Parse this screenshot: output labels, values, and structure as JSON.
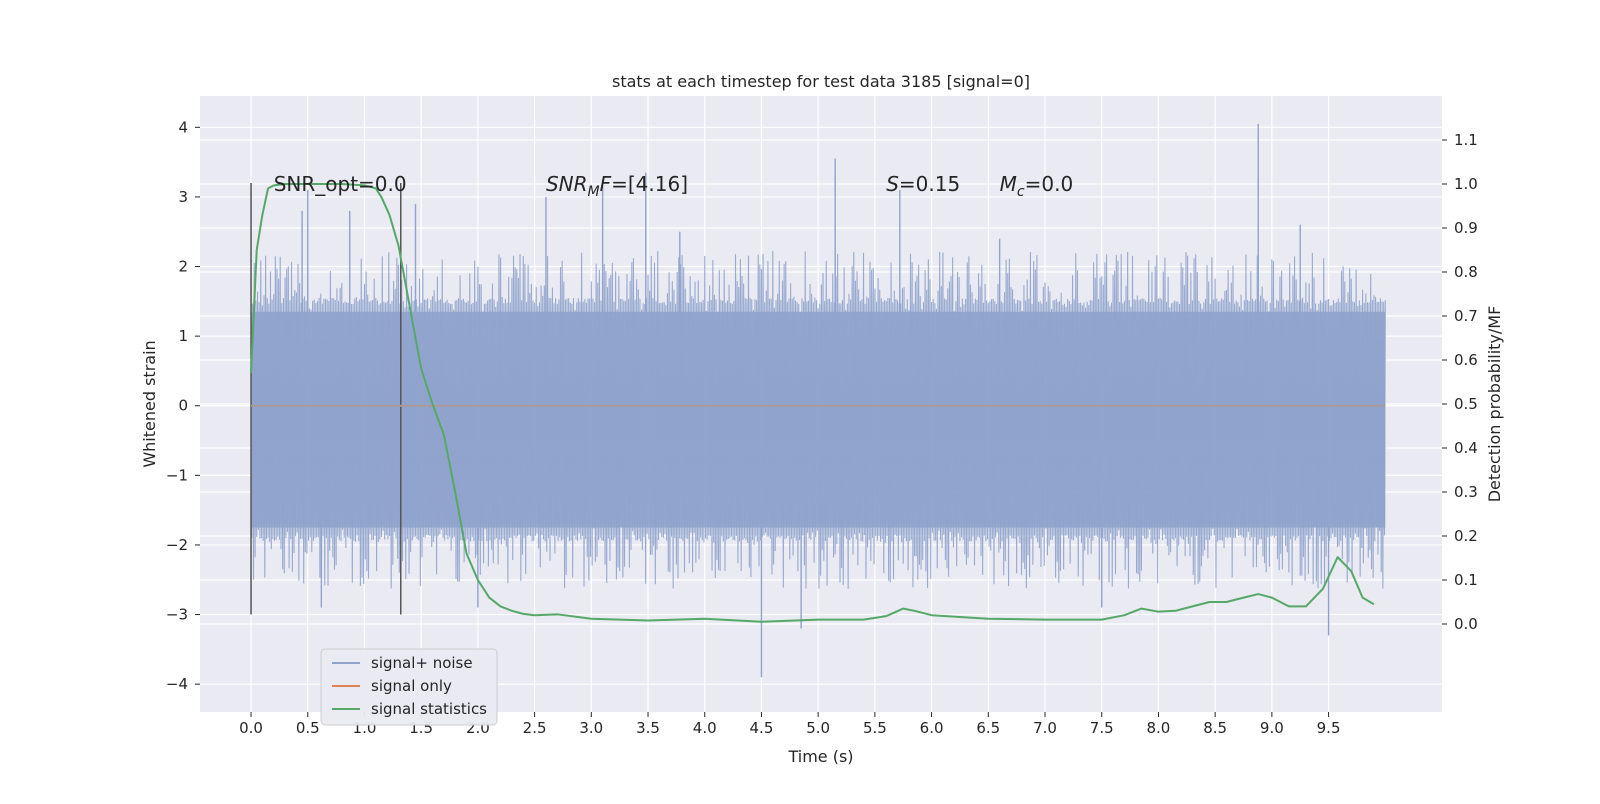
{
  "chart_data": {
    "type": "line",
    "title": "stats at each timestep for test data 3185 [signal=0]",
    "xlabel": "Time (s)",
    "ylabel_left": "Whitened strain",
    "ylabel_right": "Detection probability/MF",
    "xlim": [
      -0.45,
      10.5
    ],
    "ylim_left": [
      -4.4,
      4.45
    ],
    "ylim_right": [
      -0.2,
      1.2
    ],
    "x_ticks": [
      0.0,
      0.5,
      1.0,
      1.5,
      2.0,
      2.5,
      3.0,
      3.5,
      4.0,
      4.5,
      5.0,
      5.5,
      6.0,
      6.5,
      7.0,
      7.5,
      8.0,
      8.5,
      9.0,
      9.5
    ],
    "x_tick_labels": [
      "0.0",
      "0.5",
      "1.0",
      "1.5",
      "2.0",
      "2.5",
      "3.0",
      "3.5",
      "4.0",
      "4.5",
      "5.0",
      "5.5",
      "6.0",
      "6.5",
      "7.0",
      "7.5",
      "8.0",
      "8.5",
      "9.0",
      "9.5"
    ],
    "y_left_ticks": [
      4,
      3,
      2,
      1,
      0,
      -1,
      -2,
      -3,
      -4
    ],
    "y_left_tick_labels": [
      "4",
      "3",
      "2",
      "1",
      "0",
      "−1",
      "−2",
      "−3",
      "−4"
    ],
    "y_right_ticks": [
      1.1,
      1.0,
      0.9,
      0.8,
      0.7,
      0.6,
      0.5,
      0.4,
      0.3,
      0.2,
      0.1,
      0.0
    ],
    "y_right_tick_labels": [
      "1.1",
      "1.0",
      "0.9",
      "0.8",
      "0.7",
      "0.6",
      "0.5",
      "0.4",
      "0.3",
      "0.2",
      "0.1",
      "0.0"
    ],
    "grid": true,
    "legend_position": "lower-left",
    "colors": {
      "background": "#eaeaf2",
      "grid": "#ffffff",
      "noise": "#8fa3cc",
      "signal_only": "#dd8452",
      "statistics": "#55a868",
      "marker_lines": "#555555"
    },
    "noise_trace": {
      "x_start": 0.0,
      "x_end": 10.0,
      "band_upper": 1.35,
      "band_lower": -1.75,
      "spike_peaks": [
        {
          "x": 0.45,
          "y": 2.8
        },
        {
          "x": 0.5,
          "y": 3.1
        },
        {
          "x": 0.62,
          "y": -2.9
        },
        {
          "x": 0.87,
          "y": 2.8
        },
        {
          "x": 1.45,
          "y": 2.9
        },
        {
          "x": 2.6,
          "y": 3.0
        },
        {
          "x": 3.1,
          "y": 3.25
        },
        {
          "x": 3.48,
          "y": 3.35
        },
        {
          "x": 3.78,
          "y": 2.5
        },
        {
          "x": 4.5,
          "y": -3.9
        },
        {
          "x": 4.85,
          "y": -3.2
        },
        {
          "x": 5.15,
          "y": 3.55
        },
        {
          "x": 5.72,
          "y": 3.1
        },
        {
          "x": 6.6,
          "y": 2.4
        },
        {
          "x": 8.88,
          "y": 4.05
        },
        {
          "x": 9.5,
          "y": -3.3
        },
        {
          "x": 9.25,
          "y": 2.6
        },
        {
          "x": 2.0,
          "y": -2.9
        },
        {
          "x": 7.5,
          "y": -2.9
        }
      ]
    },
    "series": [
      {
        "name": "signal+ noise",
        "axis": "left",
        "x": [
          0.0,
          10.0
        ],
        "values": [
          0.0,
          0.0
        ]
      },
      {
        "name": "signal only",
        "axis": "left",
        "x": [
          0.0,
          10.0
        ],
        "values": [
          0.0,
          0.0
        ]
      },
      {
        "name": "signal statistics",
        "axis": "right",
        "x": [
          0.0,
          0.05,
          0.1,
          0.15,
          0.2,
          0.3,
          0.5,
          0.8,
          1.0,
          1.1,
          1.15,
          1.22,
          1.3,
          1.35,
          1.4,
          1.5,
          1.6,
          1.7,
          1.8,
          1.9,
          2.0,
          2.1,
          2.2,
          2.3,
          2.4,
          2.5,
          2.7,
          3.0,
          3.5,
          4.0,
          4.5,
          5.0,
          5.4,
          5.6,
          5.75,
          5.85,
          6.0,
          6.5,
          7.0,
          7.5,
          7.7,
          7.85,
          8.0,
          8.15,
          8.3,
          8.45,
          8.6,
          8.75,
          8.88,
          9.0,
          9.15,
          9.3,
          9.45,
          9.58,
          9.7,
          9.8,
          9.9
        ],
        "values": [
          0.57,
          0.85,
          0.93,
          0.99,
          0.997,
          1.0,
          1.0,
          1.0,
          0.997,
          0.99,
          0.97,
          0.93,
          0.86,
          0.79,
          0.72,
          0.58,
          0.5,
          0.43,
          0.3,
          0.16,
          0.1,
          0.06,
          0.04,
          0.03,
          0.023,
          0.02,
          0.022,
          0.012,
          0.008,
          0.012,
          0.005,
          0.01,
          0.01,
          0.018,
          0.035,
          0.03,
          0.02,
          0.012,
          0.01,
          0.01,
          0.02,
          0.035,
          0.028,
          0.03,
          0.04,
          0.05,
          0.05,
          0.06,
          0.068,
          0.06,
          0.04,
          0.04,
          0.08,
          0.152,
          0.12,
          0.06,
          0.045
        ]
      }
    ],
    "vertical_markers": [
      {
        "x": 0.0,
        "y_range": [
          -3.0,
          3.2
        ]
      },
      {
        "x": 1.32,
        "y_range": [
          -3.0,
          3.2
        ]
      }
    ],
    "annotations": [
      {
        "text": "SNR_opt=0.0",
        "x": 0.2,
        "y": 3.2,
        "italic": false
      },
      {
        "text": "SNR",
        "sub": "M",
        "suffix_italic": "F",
        "suffix": "=[4.16]",
        "x": 2.6,
        "y": 3.2
      },
      {
        "text": "S",
        "suffix": "=0.15",
        "x": 5.6,
        "y": 3.2
      },
      {
        "text": "M",
        "sub": "c",
        "suffix": "=0.0",
        "x": 6.6,
        "y": 3.2
      }
    ]
  }
}
